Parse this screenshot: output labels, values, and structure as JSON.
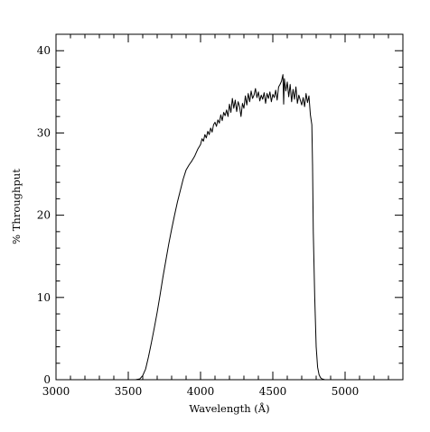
{
  "chart_data": {
    "type": "line",
    "title": "",
    "xlabel": "Wavelength (Å)",
    "ylabel": "% Throughput",
    "xlim": [
      3000,
      5400
    ],
    "ylim": [
      0,
      42
    ],
    "xticks": [
      3000,
      3500,
      4000,
      4500,
      5000
    ],
    "yticks": [
      0,
      10,
      20,
      30,
      40
    ],
    "x_minor_step": 100,
    "y_minor_step": 2,
    "grid": false,
    "legend": "none",
    "line_color": "#000000",
    "series": [
      {
        "x": [
          3000,
          3550,
          3580,
          3600,
          3620,
          3640,
          3660,
          3680,
          3700,
          3720,
          3740,
          3760,
          3780,
          3800,
          3820,
          3840,
          3860,
          3880,
          3900,
          3920,
          3940,
          3960,
          3980,
          4000,
          4010,
          4020,
          4030,
          4040,
          4050,
          4060,
          4070,
          4080,
          4090,
          4100,
          4110,
          4120,
          4130,
          4140,
          4150,
          4160,
          4170,
          4180,
          4190,
          4200,
          4210,
          4220,
          4230,
          4240,
          4250,
          4260,
          4270,
          4280,
          4290,
          4300,
          4310,
          4320,
          4330,
          4340,
          4350,
          4360,
          4370,
          4380,
          4390,
          4400,
          4410,
          4420,
          4430,
          4440,
          4450,
          4460,
          4470,
          4480,
          4490,
          4500,
          4510,
          4520,
          4530,
          4540,
          4550,
          4560,
          4570,
          4575,
          4580,
          4590,
          4600,
          4610,
          4620,
          4630,
          4640,
          4650,
          4660,
          4670,
          4680,
          4690,
          4700,
          4710,
          4720,
          4730,
          4740,
          4750,
          4760,
          4770,
          4775,
          4780,
          4790,
          4800,
          4810,
          4820,
          4830,
          4840,
          4850,
          4860,
          4880,
          4900,
          5400
        ],
        "y": [
          0,
          0,
          0.1,
          0.5,
          1.3,
          2.8,
          4.5,
          6.3,
          8.2,
          10.3,
          12.5,
          14.5,
          16.5,
          18.3,
          20.0,
          21.6,
          23.0,
          24.4,
          25.5,
          26.1,
          26.6,
          27.2,
          28.0,
          28.6,
          29.3,
          29.0,
          29.8,
          29.4,
          30.2,
          29.8,
          30.6,
          30.1,
          31.0,
          31.3,
          30.8,
          31.6,
          31.2,
          32.2,
          31.5,
          32.5,
          32.1,
          32.8,
          32.0,
          33.5,
          32.5,
          34.2,
          33.0,
          34.0,
          32.6,
          33.8,
          33.2,
          32.0,
          33.6,
          33.0,
          34.5,
          33.4,
          34.8,
          33.8,
          35.1,
          34.2,
          34.6,
          35.4,
          34.3,
          35.0,
          33.9,
          34.6,
          34.1,
          34.9,
          33.6,
          34.8,
          34.2,
          35.0,
          33.8,
          34.7,
          34.3,
          35.2,
          34.0,
          35.6,
          35.9,
          36.3,
          37.1,
          33.5,
          36.6,
          35.1,
          36.2,
          34.4,
          35.9,
          33.8,
          35.3,
          34.1,
          35.6,
          33.6,
          34.6,
          34.0,
          33.4,
          34.3,
          33.2,
          34.8,
          33.7,
          34.5,
          32.2,
          31.0,
          26.0,
          18.0,
          10.0,
          4.0,
          1.5,
          0.6,
          0.25,
          0.1,
          0.05,
          0,
          0,
          0,
          0
        ]
      }
    ]
  }
}
